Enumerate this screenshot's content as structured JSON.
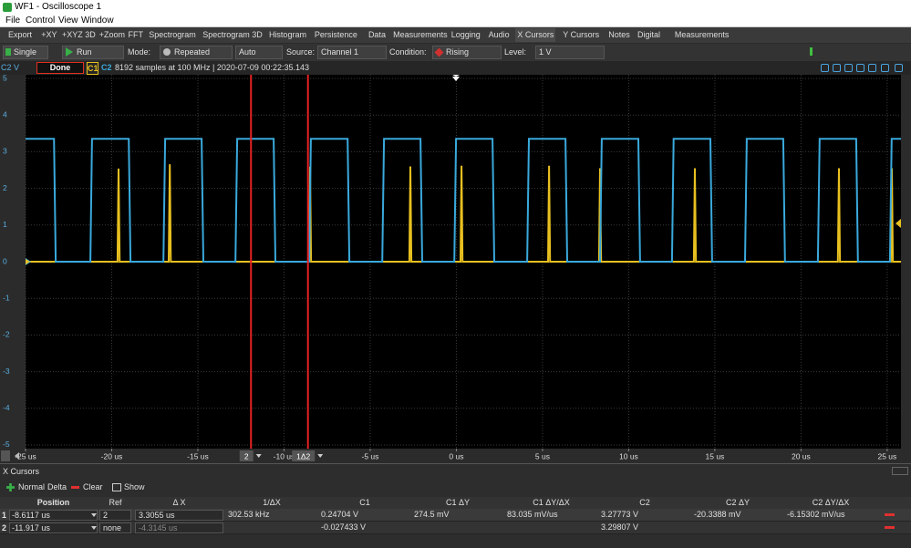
{
  "window": {
    "title": "WF1 - Oscilloscope 1"
  },
  "menu": [
    "File",
    "Control",
    "View",
    "Window"
  ],
  "toolbar": [
    "Export",
    "+XY",
    "+XYZ 3D",
    "+Zoom",
    "FFT",
    "Spectrogram",
    "Spectrogram 3D",
    "Histogram",
    "Persistence",
    "Data",
    "Measurements",
    "Logging",
    "Audio",
    "X Cursors",
    "Y Cursors",
    "Notes",
    "Digital",
    "Measurements"
  ],
  "controls": {
    "single": "Single",
    "run": "Run",
    "mode_label": "Mode:",
    "mode": "Repeated",
    "trigger": "Auto",
    "source_label": "Source:",
    "source": "Channel 1",
    "condition_label": "Condition:",
    "condition": "Rising",
    "level_label": "Level:",
    "level": "1 V"
  },
  "status": {
    "axis_unit": "C2 V",
    "state": "Done",
    "info": "8192 samples at 100 MHz | 2020-07-09 00:22:35.143"
  },
  "chart_data": {
    "type": "line",
    "xlim": [
      -25,
      25.8
    ],
    "ylim": [
      -5.1,
      5.1
    ],
    "xticks": [
      {
        "value": -25,
        "label": "-25 us"
      },
      {
        "value": -20,
        "label": "-20 us"
      },
      {
        "value": -15,
        "label": "-15 us"
      },
      {
        "value": -10,
        "label": "-10 us"
      },
      {
        "value": -5,
        "label": "-5 us"
      },
      {
        "value": 0,
        "label": "0 us"
      },
      {
        "value": 5,
        "label": "5 us"
      },
      {
        "value": 10,
        "label": "10 us"
      },
      {
        "value": 15,
        "label": "15 us"
      },
      {
        "value": 20,
        "label": "20 us"
      },
      {
        "value": 25,
        "label": "25 us"
      }
    ],
    "yticks": [
      -5,
      -4,
      -3,
      -2,
      -1,
      0,
      1,
      2,
      3,
      4,
      5
    ],
    "grid": true,
    "series": [
      {
        "name": "C1",
        "color": "#e8c020",
        "x": [
          -25,
          -19.66,
          -19.6,
          -19.54,
          -16.69,
          -16.63,
          -16.57,
          -8.55,
          -8.49,
          -8.43,
          -2.73,
          -2.67,
          -2.61,
          0.24,
          0.3,
          0.36,
          5.32,
          5.38,
          5.44,
          8.28,
          8.34,
          8.4,
          13.78,
          13.84,
          13.9,
          22.14,
          22.2,
          22.26,
          25.21,
          25.27,
          25.33,
          25.8
        ],
        "values": [
          0,
          0,
          2.54,
          0,
          0,
          2.66,
          0,
          0,
          2.59,
          0,
          0,
          2.6,
          0,
          0,
          2.62,
          0,
          0,
          2.62,
          0,
          0,
          2.55,
          0,
          0,
          2.55,
          0,
          0,
          2.55,
          0,
          0,
          2.55,
          0,
          0
        ]
      },
      {
        "name": "C2",
        "color": "#3aa9dc",
        "x": [
          -25,
          -23.35,
          -23.25,
          -21.24,
          -21.14,
          -19.01,
          -18.91,
          -17,
          -16.9,
          -14.78,
          -14.68,
          -12.82,
          -12.72,
          -10.6,
          -10.5,
          -8.54,
          -8.44,
          -6.31,
          -6.21,
          -4.3,
          -4.2,
          -2.08,
          -1.98,
          -0.12,
          -0.02,
          2.1,
          2.2,
          4.11,
          4.21,
          6.33,
          6.43,
          8.34,
          8.44,
          10.56,
          10.66,
          12.51,
          12.61,
          14.74,
          14.84,
          16.75,
          16.85,
          18.97,
          19.07,
          20.98,
          21.08,
          23.2,
          23.3,
          25.16,
          25.26,
          25.8
        ],
        "values": [
          3.35,
          3.35,
          0,
          0,
          3.35,
          3.35,
          0,
          0,
          3.35,
          3.35,
          0,
          0,
          3.35,
          3.35,
          0,
          0,
          3.35,
          3.35,
          0,
          0,
          3.35,
          3.35,
          0,
          0,
          3.35,
          3.35,
          0,
          0,
          3.35,
          3.35,
          0,
          0,
          3.35,
          3.35,
          0,
          0,
          3.35,
          3.35,
          0,
          0,
          3.35,
          3.35,
          0,
          0,
          3.35,
          3.35,
          0,
          0,
          3.35,
          3.35
        ]
      }
    ],
    "cursors": [
      {
        "value": -8.6117,
        "label": "-8.6117 us",
        "tag": "1Δ2"
      },
      {
        "value": -11.917,
        "label": "-11.917 us",
        "tag": "2"
      }
    ],
    "cursor_color": "#e52222"
  },
  "xcursors": {
    "title": "X Cursors",
    "buttons": [
      "Normal",
      "Delta",
      "Clear",
      "Show"
    ],
    "columns": [
      "Position",
      "Ref",
      "Δ X",
      "1/ΔX",
      "C1",
      "C1 ΔY",
      "C1 ΔY/ΔX",
      "C2",
      "C2 ΔY",
      "C2 ΔY/ΔX"
    ],
    "rows": [
      [
        "1",
        "2",
        "3.3055 us",
        "302.53 kHz",
        "0.24704 V",
        "274.5 mV",
        "83.035 mV/us",
        "3.27773 V",
        "-20.3388 mV",
        "-6.15302 mV/us"
      ],
      [
        "2",
        "none",
        "-4.3145 us",
        null,
        "-0.027433 V",
        null,
        null,
        "3.29807 V",
        null,
        null
      ]
    ]
  }
}
